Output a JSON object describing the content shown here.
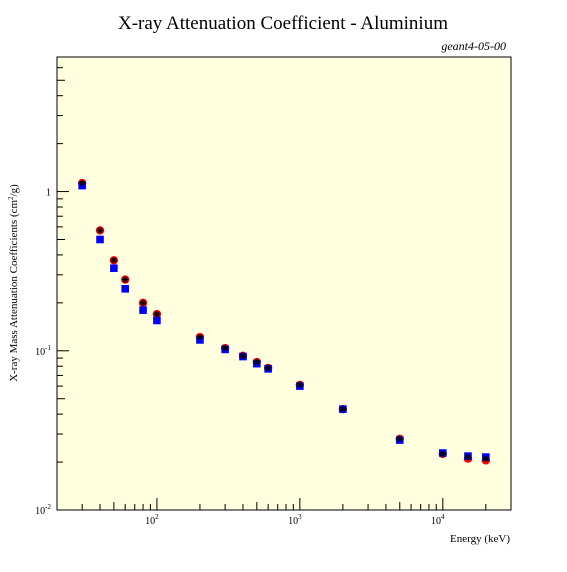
{
  "chart_data": {
    "type": "scatter",
    "title": "X-ray Attenuation Coefficient - Aluminium",
    "subtitle": "geant4-05-00",
    "xlabel": "Energy (keV)",
    "ylabel_parts": [
      "X-ray Mass Attenuation Coefficients (cm",
      "2",
      "/g)"
    ],
    "xscale": "log",
    "yscale": "log",
    "xlim": [
      20,
      30000
    ],
    "ylim": [
      0.01,
      7
    ],
    "grid": false,
    "x_ticks": [
      {
        "value": 100,
        "base": "10",
        "exp": "2"
      },
      {
        "value": 1000,
        "base": "10",
        "exp": "3"
      },
      {
        "value": 10000,
        "base": "10",
        "exp": "4"
      }
    ],
    "y_ticks": [
      {
        "value": 0.01,
        "base": "10",
        "exp": "-2"
      },
      {
        "value": 0.1,
        "base": "10",
        "exp": "-1"
      },
      {
        "value": 1,
        "base": "1",
        "exp": ""
      }
    ],
    "colors": {
      "plot_background": "#ffffe0",
      "subtitle": "#cc0000",
      "series_circle": "#ff0000",
      "series_square": "#0000ff",
      "series_star": "#000000"
    },
    "series": [
      {
        "marker": "circle",
        "color": "#ff0000",
        "points": [
          [
            30,
            1.13
          ],
          [
            40,
            0.57
          ],
          [
            50,
            0.37
          ],
          [
            60,
            0.28
          ],
          [
            80,
            0.2
          ],
          [
            100,
            0.17
          ],
          [
            200,
            0.122
          ],
          [
            300,
            0.104
          ],
          [
            400,
            0.093
          ],
          [
            500,
            0.085
          ],
          [
            600,
            0.078
          ],
          [
            1000,
            0.061
          ],
          [
            2000,
            0.043
          ],
          [
            5000,
            0.028
          ],
          [
            10000,
            0.0225
          ],
          [
            15000,
            0.021
          ],
          [
            20000,
            0.0205
          ]
        ]
      },
      {
        "marker": "square",
        "color": "#0000ff",
        "points": [
          [
            30,
            1.09
          ],
          [
            40,
            0.5
          ],
          [
            50,
            0.33
          ],
          [
            60,
            0.245
          ],
          [
            80,
            0.18
          ],
          [
            100,
            0.155
          ],
          [
            200,
            0.117
          ],
          [
            300,
            0.102
          ],
          [
            400,
            0.092
          ],
          [
            500,
            0.083
          ],
          [
            600,
            0.077
          ],
          [
            1000,
            0.06
          ],
          [
            2000,
            0.043
          ],
          [
            5000,
            0.0275
          ],
          [
            10000,
            0.0228
          ],
          [
            15000,
            0.0218
          ],
          [
            20000,
            0.0215
          ]
        ]
      },
      {
        "marker": "star",
        "color": "#000000",
        "points": [
          [
            30,
            1.13
          ],
          [
            40,
            0.57
          ],
          [
            50,
            0.37
          ],
          [
            60,
            0.28
          ],
          [
            80,
            0.2
          ],
          [
            100,
            0.17
          ],
          [
            200,
            0.122
          ],
          [
            300,
            0.104
          ],
          [
            400,
            0.093
          ],
          [
            500,
            0.085
          ],
          [
            600,
            0.078
          ],
          [
            1000,
            0.061
          ],
          [
            2000,
            0.043
          ],
          [
            5000,
            0.028
          ],
          [
            10000,
            0.0225
          ],
          [
            15000,
            0.0215
          ],
          [
            20000,
            0.021
          ]
        ]
      }
    ]
  }
}
